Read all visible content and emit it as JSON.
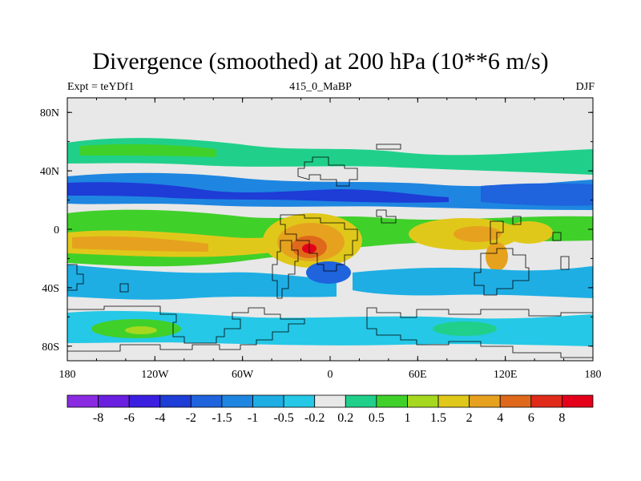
{
  "header": {
    "title": "Divergence (smoothed) at 200 hPa (10**6 m/s)",
    "left": "Expt = teYDf1",
    "center": "415_0_MaBP",
    "right": "DJF"
  },
  "chart_data": {
    "type": "heatmap",
    "title": "Divergence (smoothed) at 200 hPa (10**6 m/s)",
    "subtitle_left": "Expt = teYDf1",
    "subtitle_center": "415_0_MaBP",
    "subtitle_right": "DJF",
    "xlabel": "",
    "ylabel": "",
    "x_range": [
      -180,
      180
    ],
    "y_range": [
      -90,
      90
    ],
    "x_ticks": [
      {
        "value": -180,
        "label": "180"
      },
      {
        "value": -120,
        "label": "120W"
      },
      {
        "value": -60,
        "label": "60W"
      },
      {
        "value": 0,
        "label": "0"
      },
      {
        "value": 60,
        "label": "60E"
      },
      {
        "value": 120,
        "label": "120E"
      },
      {
        "value": 180,
        "label": "180"
      }
    ],
    "y_ticks": [
      {
        "value": 80,
        "label": "80N"
      },
      {
        "value": 40,
        "label": "40N"
      },
      {
        "value": 0,
        "label": "0"
      },
      {
        "value": -40,
        "label": "40S"
      },
      {
        "value": -80,
        "label": "80S"
      }
    ],
    "levels": [
      "-8",
      "-6",
      "-4",
      "-2",
      "-1.5",
      "-1",
      "-0.5",
      "-0.2",
      "0.2",
      "0.5",
      "1",
      "1.5",
      "2",
      "4",
      "6",
      "8"
    ],
    "colors": [
      "#8a2be2",
      "#6a1fe0",
      "#3a1fe0",
      "#1e3cd6",
      "#1f63dd",
      "#1e86e0",
      "#1eaee4",
      "#25c8e6",
      "#e8e8e8",
      "#20d08a",
      "#40d02a",
      "#a6d820",
      "#e0c81a",
      "#e6a21e",
      "#e0681a",
      "#e02a1a",
      "#e4001a"
    ],
    "features": [
      {
        "name": "eq-positive-band",
        "lon": -60,
        "lat": -20,
        "w": 120,
        "h": 14,
        "level": "1.5"
      },
      {
        "name": "south-america-divergence",
        "lon": -15,
        "lat": -10,
        "w": 28,
        "h": 18,
        "level": "4"
      },
      {
        "name": "divergence-max",
        "lon": -12,
        "lat": -13,
        "w": 6,
        "h": 4,
        "level": "8"
      },
      {
        "name": "indian-ocean-positive",
        "lon": 90,
        "lat": -3,
        "w": 48,
        "h": 12,
        "level": "2"
      },
      {
        "name": "west-pacific-positive",
        "lon": 145,
        "lat": 0,
        "w": 20,
        "h": 10,
        "level": "1.5"
      },
      {
        "name": "nh-convergence-band",
        "lon": -20,
        "lat": 28,
        "w": 140,
        "h": 12,
        "level": "-2"
      },
      {
        "name": "nh-convergence-east",
        "lon": 130,
        "lat": 24,
        "w": 60,
        "h": 12,
        "level": "-1.5"
      },
      {
        "name": "nh-midlat-positive",
        "lon": -90,
        "lat": 55,
        "w": 70,
        "h": 9,
        "level": "0.5"
      },
      {
        "name": "sh-convergence",
        "lon": -120,
        "lat": -45,
        "w": 60,
        "h": 12,
        "level": "-1"
      },
      {
        "name": "sh-high-lat-positive",
        "lon": -150,
        "lat": -70,
        "w": 40,
        "h": 10,
        "level": "1"
      }
    ]
  },
  "colorbar": {
    "labels": [
      "-8",
      "-6",
      "-4",
      "-2",
      "-1.5",
      "-1",
      "-0.5",
      "-0.2",
      "0.2",
      "0.5",
      "1",
      "1.5",
      "2",
      "4",
      "6",
      "8"
    ]
  }
}
